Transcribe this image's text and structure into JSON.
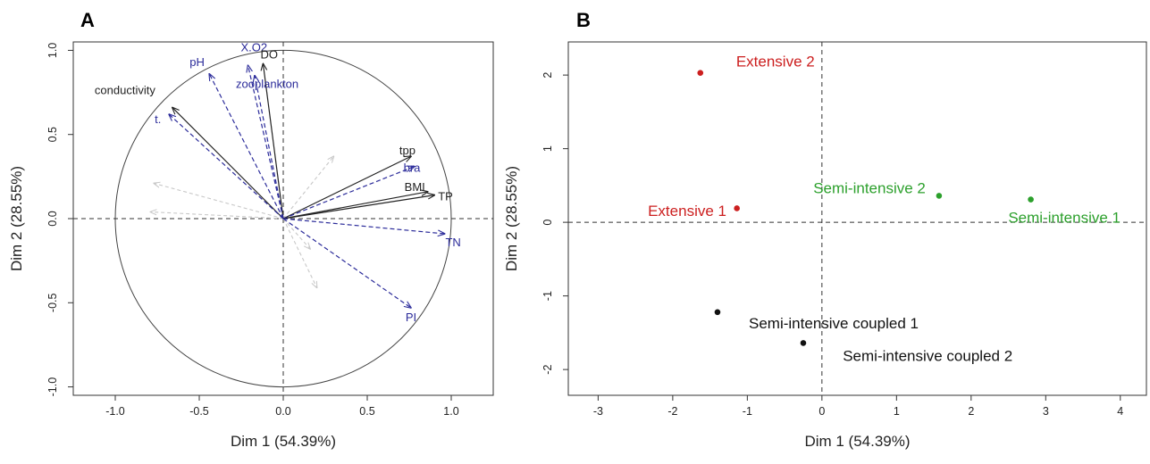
{
  "chart_data": [
    {
      "panel": "A",
      "type": "scatter",
      "xlabel": "Dim 1 (54.39%)",
      "ylabel": "Dim 2 (28.55%)",
      "xlim": [
        -1.25,
        1.25
      ],
      "ylim": [
        -1.05,
        1.05
      ],
      "xticks": [
        -1.0,
        -0.5,
        0.0,
        0.5,
        1.0
      ],
      "yticks": [
        -1.0,
        -0.5,
        0.0,
        0.5,
        1.0
      ],
      "xtick_labels": [
        "-1.0",
        "-0.5",
        "0.0",
        "0.5",
        "1.0"
      ],
      "ytick_labels": [
        "-1.0",
        "-0.5",
        "0.0",
        "0.5",
        "1.0"
      ],
      "grid": false,
      "correlation_circle": true,
      "colors": {
        "active": "#222222",
        "supplementary": "#2b2b9a",
        "ghost": "#c8c8c8"
      },
      "variables": [
        {
          "name": "conductivity",
          "x": -0.66,
          "y": 0.66,
          "group": "active"
        },
        {
          "name": "t.",
          "x": -0.68,
          "y": 0.62,
          "group": "supplementary"
        },
        {
          "name": "pH",
          "x": -0.44,
          "y": 0.86,
          "group": "supplementary"
        },
        {
          "name": "X.O2",
          "x": -0.21,
          "y": 0.91,
          "group": "supplementary"
        },
        {
          "name": "DO",
          "x": -0.12,
          "y": 0.92,
          "group": "active"
        },
        {
          "name": "zooplankton",
          "x": -0.17,
          "y": 0.85,
          "group": "supplementary"
        },
        {
          "name": "tpp",
          "x": 0.76,
          "y": 0.37,
          "group": "active"
        },
        {
          "name": "bra",
          "x": 0.78,
          "y": 0.31,
          "group": "supplementary"
        },
        {
          "name": "BMI",
          "x": 0.86,
          "y": 0.16,
          "group": "active"
        },
        {
          "name": "TP",
          "x": 0.9,
          "y": 0.14,
          "group": "active"
        },
        {
          "name": "TN",
          "x": 0.96,
          "y": -0.09,
          "group": "supplementary"
        },
        {
          "name": "PI",
          "x": 0.76,
          "y": -0.53,
          "group": "supplementary"
        }
      ],
      "ghost_vectors": [
        {
          "x": -0.77,
          "y": 0.21
        },
        {
          "x": -0.79,
          "y": 0.04
        },
        {
          "x": 0.3,
          "y": 0.37
        },
        {
          "x": 0.2,
          "y": -0.41
        },
        {
          "x": 0.16,
          "y": -0.18
        }
      ]
    },
    {
      "panel": "B",
      "type": "scatter",
      "xlabel": "Dim 1 (54.39%)",
      "ylabel": "Dim 2 (28.55%)",
      "xlim": [
        -3.4,
        4.35
      ],
      "ylim": [
        -2.35,
        2.45
      ],
      "xticks": [
        -3,
        -2,
        -1,
        0,
        1,
        2,
        3,
        4
      ],
      "yticks": [
        -2,
        -1,
        0,
        1,
        2
      ],
      "xtick_labels": [
        "-3",
        "-2",
        "-1",
        "0",
        "1",
        "2",
        "3",
        "4"
      ],
      "ytick_labels": [
        "-2",
        "-1",
        "0",
        "1",
        "2"
      ],
      "grid": false,
      "points": [
        {
          "name": "Extensive 2",
          "x": -1.63,
          "y": 2.03,
          "color": "#cc1f1f",
          "label_dx": 0.48,
          "label_dy": 0.16,
          "anchor": "start"
        },
        {
          "name": "Extensive 1",
          "x": -1.14,
          "y": 0.19,
          "color": "#cc1f1f",
          "label_dx": -0.14,
          "label_dy": -0.03,
          "anchor": "end"
        },
        {
          "name": "Semi-intensive 2",
          "x": 1.57,
          "y": 0.36,
          "color": "#2ca02c",
          "label_dx": -0.18,
          "label_dy": 0.11,
          "anchor": "end"
        },
        {
          "name": "Semi-intensive 1",
          "x": 2.8,
          "y": 0.31,
          "color": "#2ca02c",
          "label_dx": 0.45,
          "label_dy": -0.24,
          "anchor": "middle"
        },
        {
          "name": "Semi-intensive coupled 1",
          "x": -1.4,
          "y": -1.22,
          "color": "#111111",
          "label_dx": 0.42,
          "label_dy": -0.15,
          "anchor": "start"
        },
        {
          "name": "Semi-intensive coupled 2",
          "x": -0.25,
          "y": -1.64,
          "color": "#111111",
          "label_dx": 0.53,
          "label_dy": -0.17,
          "anchor": "start"
        }
      ]
    }
  ]
}
